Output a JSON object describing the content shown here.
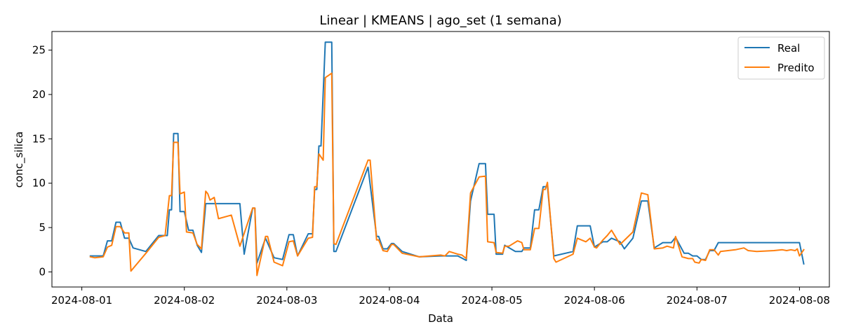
{
  "chart_data": {
    "type": "line",
    "title": "Linear | KMEANS | ago_set (1 semana)",
    "xlabel": "Data",
    "ylabel": "conc_silica",
    "x_axis_type": "datetime",
    "x_ticks": [
      "2024-08-01",
      "2024-08-02",
      "2024-08-03",
      "2024-08-04",
      "2024-08-05",
      "2024-08-06",
      "2024-08-07",
      "2024-08-08"
    ],
    "y_ticks": [
      0,
      5,
      10,
      15,
      20,
      25
    ],
    "xlim": [
      "2024-07-31T17:00",
      "2024-08-08T07:00"
    ],
    "ylim": [
      -1.7,
      27.1
    ],
    "grid": false,
    "legend_position": "top-right",
    "series": [
      {
        "name": "Real",
        "color": "#1f77b4",
        "points": [
          [
            "2024-08-01T02:00",
            1.8
          ],
          [
            "2024-08-01T05:00",
            1.8
          ],
          [
            "2024-08-01T06:00",
            3.5
          ],
          [
            "2024-08-01T07:00",
            3.5
          ],
          [
            "2024-08-01T08:00",
            5.6
          ],
          [
            "2024-08-01T09:00",
            5.6
          ],
          [
            "2024-08-01T10:00",
            3.8
          ],
          [
            "2024-08-01T11:00",
            3.8
          ],
          [
            "2024-08-01T12:00",
            2.7
          ],
          [
            "2024-08-01T15:00",
            2.3
          ],
          [
            "2024-08-01T18:00",
            4.1
          ],
          [
            "2024-08-01T20:00",
            4.1
          ],
          [
            "2024-08-01T20:30",
            7.0
          ],
          [
            "2024-08-01T21:00",
            7.0
          ],
          [
            "2024-08-01T21:30",
            15.6
          ],
          [
            "2024-08-01T22:30",
            15.6
          ],
          [
            "2024-08-01T23:00",
            6.8
          ],
          [
            "2024-08-02T00:00",
            6.8
          ],
          [
            "2024-08-02T01:00",
            4.7
          ],
          [
            "2024-08-02T02:00",
            4.7
          ],
          [
            "2024-08-02T03:00",
            3.0
          ],
          [
            "2024-08-02T04:00",
            2.2
          ],
          [
            "2024-08-02T05:00",
            7.7
          ],
          [
            "2024-08-02T13:00",
            7.7
          ],
          [
            "2024-08-02T14:00",
            2.0
          ],
          [
            "2024-08-02T16:00",
            7.2
          ],
          [
            "2024-08-02T16:30",
            7.2
          ],
          [
            "2024-08-02T17:00",
            1.0
          ],
          [
            "2024-08-02T19:00",
            3.8
          ],
          [
            "2024-08-02T21:00",
            1.6
          ],
          [
            "2024-08-02T23:00",
            1.4
          ],
          [
            "2024-08-03T00:30",
            4.2
          ],
          [
            "2024-08-03T01:30",
            4.2
          ],
          [
            "2024-08-03T02:30",
            1.8
          ],
          [
            "2024-08-03T05:00",
            4.3
          ],
          [
            "2024-08-03T06:00",
            4.3
          ],
          [
            "2024-08-03T06:30",
            9.3
          ],
          [
            "2024-08-03T07:00",
            9.3
          ],
          [
            "2024-08-03T07:30",
            14.2
          ],
          [
            "2024-08-03T08:00",
            14.2
          ],
          [
            "2024-08-03T09:00",
            25.9
          ],
          [
            "2024-08-03T10:30",
            25.9
          ],
          [
            "2024-08-03T11:00",
            2.3
          ],
          [
            "2024-08-03T11:30",
            2.3
          ],
          [
            "2024-08-03T19:00",
            11.8
          ],
          [
            "2024-08-03T21:00",
            4.0
          ],
          [
            "2024-08-03T21:30",
            4.0
          ],
          [
            "2024-08-03T22:30",
            2.6
          ],
          [
            "2024-08-03T23:30",
            2.6
          ],
          [
            "2024-08-04T00:30",
            3.2
          ],
          [
            "2024-08-04T01:00",
            3.2
          ],
          [
            "2024-08-04T03:00",
            2.3
          ],
          [
            "2024-08-04T07:00",
            1.7
          ],
          [
            "2024-08-04T12:00",
            1.8
          ],
          [
            "2024-08-04T16:00",
            1.8
          ],
          [
            "2024-08-04T18:00",
            1.3
          ],
          [
            "2024-08-04T19:00",
            8.0
          ],
          [
            "2024-08-04T21:00",
            12.2
          ],
          [
            "2024-08-04T22:30",
            12.2
          ],
          [
            "2024-08-04T23:00",
            6.5
          ],
          [
            "2024-08-05T00:30",
            6.5
          ],
          [
            "2024-08-05T01:00",
            2.0
          ],
          [
            "2024-08-05T02:30",
            2.0
          ],
          [
            "2024-08-05T03:00",
            3.0
          ],
          [
            "2024-08-05T05:30",
            2.3
          ],
          [
            "2024-08-05T07:00",
            2.3
          ],
          [
            "2024-08-05T07:30",
            2.7
          ],
          [
            "2024-08-05T09:00",
            2.7
          ],
          [
            "2024-08-05T10:00",
            7.0
          ],
          [
            "2024-08-05T11:00",
            7.0
          ],
          [
            "2024-08-05T12:00",
            9.6
          ],
          [
            "2024-08-05T12:30",
            9.6
          ],
          [
            "2024-08-05T13:00",
            9.7
          ],
          [
            "2024-08-05T14:30",
            1.8
          ],
          [
            "2024-08-05T19:00",
            2.3
          ],
          [
            "2024-08-05T20:00",
            5.2
          ],
          [
            "2024-08-05T23:00",
            5.2
          ],
          [
            "2024-08-06T00:00",
            2.8
          ],
          [
            "2024-08-06T02:00",
            3.4
          ],
          [
            "2024-08-06T03:00",
            3.4
          ],
          [
            "2024-08-06T04:00",
            3.8
          ],
          [
            "2024-08-06T06:00",
            3.4
          ],
          [
            "2024-08-06T07:00",
            2.6
          ],
          [
            "2024-08-06T09:00",
            3.8
          ],
          [
            "2024-08-06T11:00",
            8.0
          ],
          [
            "2024-08-06T12:30",
            8.0
          ],
          [
            "2024-08-06T14:00",
            2.7
          ],
          [
            "2024-08-06T16:00",
            3.3
          ],
          [
            "2024-08-06T18:00",
            3.3
          ],
          [
            "2024-08-06T19:00",
            3.9
          ],
          [
            "2024-08-06T21:00",
            2.1
          ],
          [
            "2024-08-06T22:00",
            2.1
          ],
          [
            "2024-08-06T23:00",
            1.8
          ],
          [
            "2024-08-07T00:00",
            1.8
          ],
          [
            "2024-08-07T01:00",
            1.4
          ],
          [
            "2024-08-07T02:00",
            1.4
          ],
          [
            "2024-08-07T03:00",
            2.4
          ],
          [
            "2024-08-07T04:00",
            2.4
          ],
          [
            "2024-08-07T05:00",
            3.3
          ],
          [
            "2024-08-08T00:00",
            3.3
          ],
          [
            "2024-08-08T01:00",
            0.9
          ]
        ]
      },
      {
        "name": "Predito",
        "color": "#ff7f0e",
        "points": [
          [
            "2024-08-01T02:00",
            1.7
          ],
          [
            "2024-08-01T03:00",
            1.6
          ],
          [
            "2024-08-01T05:00",
            1.7
          ],
          [
            "2024-08-01T06:00",
            2.8
          ],
          [
            "2024-08-01T07:00",
            3.0
          ],
          [
            "2024-08-01T08:00",
            5.1
          ],
          [
            "2024-08-01T09:00",
            5.1
          ],
          [
            "2024-08-01T10:00",
            4.4
          ],
          [
            "2024-08-01T11:00",
            4.4
          ],
          [
            "2024-08-01T11:30",
            0.1
          ],
          [
            "2024-08-01T15:00",
            2.1
          ],
          [
            "2024-08-01T18:00",
            3.9
          ],
          [
            "2024-08-01T19:30",
            4.1
          ],
          [
            "2024-08-01T20:30",
            8.6
          ],
          [
            "2024-08-01T21:00",
            8.6
          ],
          [
            "2024-08-01T21:30",
            14.6
          ],
          [
            "2024-08-01T22:30",
            14.6
          ],
          [
            "2024-08-01T23:00",
            8.8
          ],
          [
            "2024-08-02T00:00",
            9.0
          ],
          [
            "2024-08-02T00:30",
            4.5
          ],
          [
            "2024-08-02T02:00",
            4.4
          ],
          [
            "2024-08-02T03:00",
            3.1
          ],
          [
            "2024-08-02T04:00",
            2.6
          ],
          [
            "2024-08-02T05:00",
            9.1
          ],
          [
            "2024-08-02T05:30",
            8.8
          ],
          [
            "2024-08-02T06:00",
            8.1
          ],
          [
            "2024-08-02T07:00",
            8.4
          ],
          [
            "2024-08-02T08:00",
            6.0
          ],
          [
            "2024-08-02T11:00",
            6.4
          ],
          [
            "2024-08-02T13:00",
            2.9
          ],
          [
            "2024-08-02T16:00",
            7.2
          ],
          [
            "2024-08-02T16:30",
            7.2
          ],
          [
            "2024-08-02T17:00",
            -0.4
          ],
          [
            "2024-08-02T19:00",
            4.0
          ],
          [
            "2024-08-02T19:30",
            4.0
          ],
          [
            "2024-08-02T21:00",
            1.1
          ],
          [
            "2024-08-02T23:00",
            0.7
          ],
          [
            "2024-08-03T00:30",
            3.4
          ],
          [
            "2024-08-03T01:30",
            3.5
          ],
          [
            "2024-08-03T02:30",
            1.8
          ],
          [
            "2024-08-03T05:00",
            3.8
          ],
          [
            "2024-08-03T06:00",
            3.9
          ],
          [
            "2024-08-03T06:30",
            9.6
          ],
          [
            "2024-08-03T07:00",
            9.6
          ],
          [
            "2024-08-03T07:30",
            13.3
          ],
          [
            "2024-08-03T08:30",
            12.6
          ],
          [
            "2024-08-03T09:00",
            21.9
          ],
          [
            "2024-08-03T10:30",
            22.4
          ],
          [
            "2024-08-03T11:00",
            3.2
          ],
          [
            "2024-08-03T11:30",
            3.1
          ],
          [
            "2024-08-03T19:00",
            12.6
          ],
          [
            "2024-08-03T19:30",
            12.6
          ],
          [
            "2024-08-03T21:00",
            3.6
          ],
          [
            "2024-08-03T21:30",
            3.6
          ],
          [
            "2024-08-03T22:30",
            2.4
          ],
          [
            "2024-08-03T23:30",
            2.3
          ],
          [
            "2024-08-04T00:30",
            3.1
          ],
          [
            "2024-08-04T01:00",
            3.1
          ],
          [
            "2024-08-04T03:00",
            2.1
          ],
          [
            "2024-08-04T07:00",
            1.7
          ],
          [
            "2024-08-04T12:00",
            1.9
          ],
          [
            "2024-08-04T13:00",
            1.8
          ],
          [
            "2024-08-04T14:00",
            2.3
          ],
          [
            "2024-08-04T16:00",
            2.0
          ],
          [
            "2024-08-04T17:00",
            1.9
          ],
          [
            "2024-08-04T18:00",
            1.5
          ],
          [
            "2024-08-04T19:00",
            8.9
          ],
          [
            "2024-08-04T21:00",
            10.7
          ],
          [
            "2024-08-04T22:30",
            10.8
          ],
          [
            "2024-08-04T23:00",
            3.4
          ],
          [
            "2024-08-05T00:30",
            3.3
          ],
          [
            "2024-08-05T01:00",
            2.2
          ],
          [
            "2024-08-05T02:30",
            2.1
          ],
          [
            "2024-08-05T03:00",
            2.9
          ],
          [
            "2024-08-05T04:00",
            2.9
          ],
          [
            "2024-08-05T06:00",
            3.5
          ],
          [
            "2024-08-05T07:00",
            3.3
          ],
          [
            "2024-08-05T07:30",
            2.5
          ],
          [
            "2024-08-05T09:00",
            2.5
          ],
          [
            "2024-08-05T10:00",
            4.9
          ],
          [
            "2024-08-05T11:00",
            4.9
          ],
          [
            "2024-08-05T12:00",
            9.3
          ],
          [
            "2024-08-05T12:30",
            9.3
          ],
          [
            "2024-08-05T13:00",
            10.1
          ],
          [
            "2024-08-05T14:30",
            1.5
          ],
          [
            "2024-08-05T15:00",
            1.1
          ],
          [
            "2024-08-05T19:00",
            2.0
          ],
          [
            "2024-08-05T20:00",
            3.8
          ],
          [
            "2024-08-05T22:00",
            3.4
          ],
          [
            "2024-08-05T23:00",
            3.8
          ],
          [
            "2024-08-06T00:00",
            2.8
          ],
          [
            "2024-08-06T00:30",
            2.7
          ],
          [
            "2024-08-06T02:00",
            3.6
          ],
          [
            "2024-08-06T03:00",
            4.1
          ],
          [
            "2024-08-06T04:00",
            4.7
          ],
          [
            "2024-08-06T06:00",
            3.1
          ],
          [
            "2024-08-06T09:00",
            4.5
          ],
          [
            "2024-08-06T11:00",
            8.9
          ],
          [
            "2024-08-06T12:30",
            8.7
          ],
          [
            "2024-08-06T14:00",
            2.6
          ],
          [
            "2024-08-06T16:00",
            2.7
          ],
          [
            "2024-08-06T17:00",
            2.9
          ],
          [
            "2024-08-06T18:30",
            2.7
          ],
          [
            "2024-08-06T19:00",
            4.0
          ],
          [
            "2024-08-06T20:30",
            1.7
          ],
          [
            "2024-08-06T22:00",
            1.5
          ],
          [
            "2024-08-06T23:00",
            1.5
          ],
          [
            "2024-08-06T23:30",
            1.1
          ],
          [
            "2024-08-07T00:30",
            1.0
          ],
          [
            "2024-08-07T01:00",
            1.4
          ],
          [
            "2024-08-07T02:00",
            1.3
          ],
          [
            "2024-08-07T03:00",
            2.5
          ],
          [
            "2024-08-07T04:00",
            2.5
          ],
          [
            "2024-08-07T05:00",
            1.9
          ],
          [
            "2024-08-07T05:30",
            2.3
          ],
          [
            "2024-08-07T09:00",
            2.5
          ],
          [
            "2024-08-07T11:00",
            2.7
          ],
          [
            "2024-08-07T12:00",
            2.4
          ],
          [
            "2024-08-07T14:00",
            2.3
          ],
          [
            "2024-08-07T18:00",
            2.4
          ],
          [
            "2024-08-07T20:00",
            2.5
          ],
          [
            "2024-08-07T21:00",
            2.4
          ],
          [
            "2024-08-07T22:00",
            2.5
          ],
          [
            "2024-08-07T23:00",
            2.4
          ],
          [
            "2024-08-07T23:30",
            2.6
          ],
          [
            "2024-08-08T00:00",
            1.8
          ],
          [
            "2024-08-08T01:00",
            2.5
          ]
        ]
      }
    ]
  }
}
